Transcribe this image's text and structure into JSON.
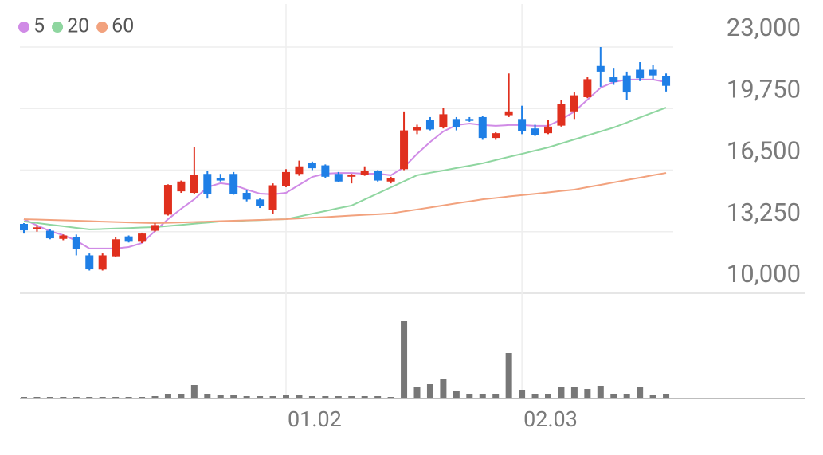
{
  "chart_data": {
    "type": "candlestick",
    "legend": "top-left",
    "up_color": "#e0301e",
    "down_color": "#1f7fe6",
    "volume_color": "#777777",
    "categories": [
      null,
      null,
      null,
      null,
      null,
      null,
      null,
      null,
      null,
      null,
      null,
      null,
      null,
      null,
      null,
      null,
      null,
      null,
      null,
      null,
      "01.02",
      null,
      null,
      null,
      null,
      null,
      null,
      null,
      null,
      null,
      null,
      null,
      null,
      null,
      null,
      null,
      null,
      null,
      "02.03",
      null,
      null,
      null,
      null,
      null,
      null,
      null,
      null,
      null,
      null,
      null
    ],
    "open": [
      13660,
      13400,
      13300,
      12870,
      12980,
      12000,
      11250,
      11950,
      13000,
      12720,
      13300,
      14150,
      15380,
      15300,
      16300,
      16100,
      16300,
      15300,
      14950,
      14400,
      15650,
      16300,
      16900,
      16750,
      16300,
      16150,
      16250,
      16450,
      15900,
      16550,
      18600,
      19150,
      18750,
      19200,
      19200,
      19300,
      18200,
      19400,
      19200,
      18700,
      18450,
      18850,
      19600,
      20350,
      22000,
      21400,
      21500,
      21800,
      21800,
      21450
    ],
    "high": [
      13700,
      13600,
      13400,
      13100,
      13100,
      12100,
      12100,
      12950,
      13050,
      13200,
      13700,
      15750,
      15950,
      17700,
      16450,
      16300,
      16400,
      15450,
      15000,
      15800,
      16550,
      17000,
      16950,
      16800,
      16400,
      16300,
      16700,
      16500,
      16150,
      19600,
      18900,
      19300,
      19800,
      19300,
      19300,
      19350,
      18500,
      21600,
      19900,
      18900,
      19150,
      20200,
      20600,
      21400,
      23000,
      21900,
      21700,
      22200,
      22050,
      21600
    ],
    "low": [
      13150,
      13250,
      12850,
      12800,
      12000,
      11200,
      11200,
      11900,
      12680,
      12650,
      13250,
      14100,
      15300,
      15250,
      15000,
      15900,
      15200,
      14850,
      14500,
      14200,
      15600,
      16200,
      16500,
      16100,
      15850,
      15800,
      16200,
      15900,
      15800,
      16500,
      18400,
      18600,
      18700,
      18600,
      19050,
      18100,
      18100,
      19300,
      18400,
      18300,
      18400,
      18800,
      19200,
      20300,
      20900,
      21000,
      20200,
      21200,
      21300,
      20650
    ],
    "close": [
      13320,
      13480,
      12900,
      13050,
      12350,
      11260,
      12000,
      12850,
      12720,
      13150,
      13600,
      15720,
      15900,
      16250,
      15250,
      15950,
      15250,
      14950,
      14600,
      15700,
      16400,
      16700,
      16600,
      16150,
      15900,
      16250,
      16450,
      15950,
      16100,
      18600,
      18750,
      18650,
      19450,
      18750,
      19100,
      18200,
      18450,
      19600,
      18550,
      18350,
      18800,
      20000,
      20450,
      21300,
      21700,
      21150,
      20600,
      21350,
      21500,
      20950
    ],
    "volume": [
      2,
      2,
      2,
      2,
      2,
      2,
      2,
      2,
      2,
      2,
      3,
      5,
      6,
      17,
      6,
      4,
      4,
      3,
      3,
      3,
      4,
      4,
      3,
      3,
      3,
      3,
      3,
      3,
      2,
      97,
      14,
      18,
      24,
      9,
      6,
      6,
      6,
      57,
      10,
      6,
      6,
      14,
      14,
      12,
      16,
      6,
      6,
      14,
      4,
      6
    ],
    "moving_averages": [
      {
        "name": "5",
        "color": "#d08be6",
        "values": [
          13910,
          13580,
          13280,
          13070,
          12780,
          12360,
          12360,
          12360,
          12440,
          12650,
          13280,
          13910,
          14460,
          14960,
          15600,
          15810,
          15720,
          15470,
          15260,
          15220,
          15300,
          15720,
          16140,
          16310,
          16350,
          16350,
          16310,
          16310,
          16230,
          16650,
          17360,
          17990,
          18540,
          18880,
          18960,
          18880,
          18840,
          18880,
          18880,
          18840,
          18840,
          19170,
          19590,
          20220,
          20850,
          21150,
          21280,
          21280,
          21280,
          21150
        ]
      },
      {
        "name": "20",
        "color": "#8fd6a0",
        "values": [
          13790,
          13710,
          13620,
          13540,
          13450,
          13370,
          13390,
          13420,
          13440,
          13470,
          13490,
          13550,
          13610,
          13670,
          13730,
          13790,
          13810,
          13840,
          13860,
          13890,
          13910,
          14050,
          14200,
          14340,
          14490,
          14630,
          14950,
          15270,
          15590,
          15910,
          16230,
          16360,
          16480,
          16610,
          16730,
          16860,
          17030,
          17200,
          17360,
          17530,
          17700,
          17910,
          18120,
          18330,
          18540,
          18750,
          19010,
          19280,
          19540,
          19800
        ]
      },
      {
        "name": "60",
        "color": "#f2a27e",
        "values": [
          13910,
          13890,
          13870,
          13850,
          13830,
          13810,
          13780,
          13760,
          13740,
          13720,
          13700,
          13720,
          13740,
          13760,
          13780,
          13810,
          13830,
          13850,
          13870,
          13890,
          13910,
          13950,
          13990,
          14020,
          14060,
          14100,
          14140,
          14170,
          14210,
          14320,
          14420,
          14530,
          14640,
          14750,
          14850,
          14960,
          15030,
          15110,
          15180,
          15250,
          15320,
          15400,
          15470,
          15600,
          15720,
          15850,
          15980,
          16100,
          16230,
          16350
        ]
      }
    ],
    "ylim": [
      10000,
      23000
    ],
    "yticks": [
      {
        "value": 10000,
        "label": "10,000"
      },
      {
        "value": 13250,
        "label": "13,250"
      },
      {
        "value": 16500,
        "label": "16,500"
      },
      {
        "value": 19750,
        "label": "19,750"
      },
      {
        "value": 23000,
        "label": "23,000"
      }
    ],
    "volume_lim": [
      0,
      100
    ],
    "grid": true
  }
}
